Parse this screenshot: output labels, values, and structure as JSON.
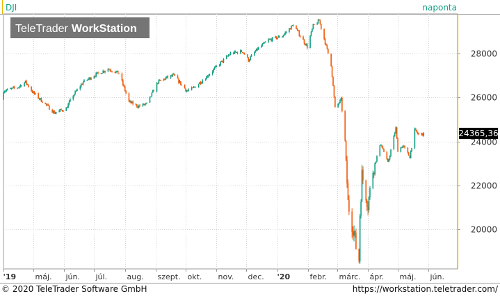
{
  "symbol": "DJI",
  "interval_label": "naponta",
  "logo": {
    "brand": "TeleTrader",
    "product": "WorkStation"
  },
  "last_price_label": "24365,36",
  "footer": {
    "copyright": "© 2020 TeleTrader Software GmbH",
    "url": "https://workstation.teletrader.com/"
  },
  "colors": {
    "up": "#0f9e82",
    "down": "#f05a0a",
    "accent": "#e8b800",
    "grid": "#d6d6d6",
    "symbol_text": "#0f9e82",
    "logo_bg": "#6e6e6e"
  },
  "chart_data": {
    "type": "candlestick",
    "title": "",
    "ylim": [
      18200,
      29800
    ],
    "y_ticks": [
      "28000",
      "26000",
      "24000",
      "22000",
      "20000"
    ],
    "y_tick_values": [
      28000,
      26000,
      24000,
      22000,
      20000
    ],
    "x_ticks": [
      "'19",
      "máj.",
      "jún.",
      "júl.",
      "aug.",
      "szept.",
      "okt.",
      "nov.",
      "dec.",
      "'20",
      "febr.",
      "márc.",
      "ápr.",
      "máj.",
      "jún."
    ],
    "x_tick_dates": [
      "2019-04-01",
      "2019-05-01",
      "2019-06-01",
      "2019-07-01",
      "2019-08-01",
      "2019-09-01",
      "2019-10-01",
      "2019-11-01",
      "2019-12-01",
      "2020-01-01",
      "2020-02-01",
      "2020-03-01",
      "2020-04-01",
      "2020-05-01",
      "2020-06-01"
    ],
    "x_range": [
      "2019-04-01",
      "2020-06-30"
    ],
    "grid": true,
    "last_value": 24365.36,
    "series": [
      {
        "x": [
          "2019-04-01",
          "2019-04-15",
          "2019-04-23",
          "2019-05-01",
          "2019-05-13",
          "2019-05-22",
          "2019-06-03",
          "2019-06-10",
          "2019-06-20",
          "2019-07-01",
          "2019-07-15",
          "2019-07-26",
          "2019-08-05",
          "2019-08-14",
          "2019-08-23",
          "2019-09-03",
          "2019-09-12",
          "2019-09-19",
          "2019-10-02",
          "2019-10-08",
          "2019-10-21",
          "2019-11-01",
          "2019-11-15",
          "2019-11-27",
          "2019-12-03",
          "2019-12-12",
          "2019-12-23",
          "2020-01-06",
          "2020-01-17",
          "2020-01-31",
          "2020-02-06",
          "2020-02-12",
          "2020-02-24",
          "2020-02-28",
          "2020-03-05",
          "2020-03-09",
          "2020-03-12",
          "2020-03-16",
          "2020-03-18",
          "2020-03-20",
          "2020-03-23",
          "2020-03-24",
          "2020-03-26",
          "2020-04-01",
          "2020-04-06",
          "2020-04-14",
          "2020-04-21",
          "2020-04-29",
          "2020-05-01",
          "2020-05-06",
          "2020-05-13",
          "2020-05-18",
          "2020-05-22",
          "2020-05-27"
        ],
        "open": [
          25900,
          26350,
          26500,
          26600,
          25900,
          25600,
          24900,
          25650,
          26100,
          26800,
          27300,
          27200,
          26400,
          25800,
          25600,
          26100,
          26800,
          26900,
          26800,
          26350,
          26800,
          27100,
          27700,
          28100,
          27800,
          28000,
          28500,
          28600,
          28900,
          28600,
          29100,
          29350,
          28900,
          26400,
          26200,
          25800,
          23900,
          23100,
          20900,
          20100,
          18700,
          18500,
          20600,
          21900,
          21000,
          23100,
          23500,
          23800,
          24200,
          23700,
          23200,
          23700,
          24000,
          24300
        ],
        "close": [
          26300,
          26450,
          26700,
          26200,
          25700,
          25300,
          25500,
          26100,
          26700,
          27000,
          27300,
          27100,
          25800,
          25600,
          25700,
          26700,
          26900,
          27000,
          26300,
          26400,
          26900,
          27400,
          28000,
          28100,
          27700,
          28200,
          28600,
          28800,
          29300,
          28300,
          29250,
          29500,
          27500,
          25500,
          25900,
          24000,
          21200,
          20200,
          19900,
          19200,
          18600,
          20700,
          22500,
          21100,
          22700,
          23900,
          23000,
          24600,
          23600,
          23800,
          23300,
          24500,
          24300,
          24365
        ]
      }
    ]
  }
}
